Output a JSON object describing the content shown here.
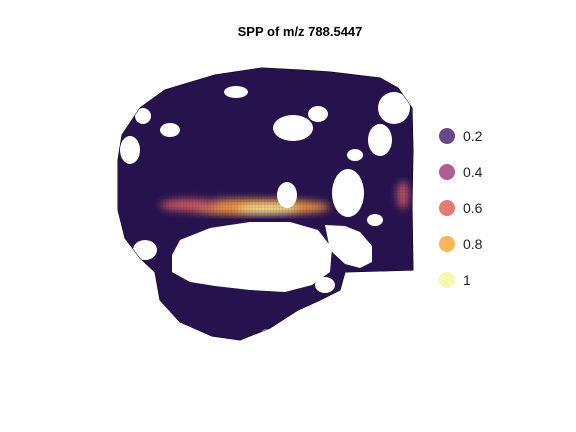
{
  "chart_data": {
    "type": "heatmap",
    "title": "SPP of m/z 788.5447",
    "xlabel": "",
    "ylabel": "",
    "color_scale": "inferno",
    "value_range": [
      0,
      1
    ],
    "legend": {
      "placement": "right",
      "entries": [
        {
          "label": "0.2",
          "value": 0.2,
          "color": "#4a2a75"
        },
        {
          "label": "0.4",
          "value": 0.4,
          "color": "#a3427a"
        },
        {
          "label": "0.6",
          "value": 0.6,
          "color": "#e0625a"
        },
        {
          "label": "0.8",
          "value": 0.8,
          "color": "#f9a83a"
        },
        {
          "label": "1",
          "value": 1.0,
          "color": "#f6f5a0"
        }
      ]
    },
    "background_value": 0.12,
    "hotspots": [
      {
        "region": "central band",
        "value": 0.75
      },
      {
        "region": "central band core",
        "value": 0.98
      },
      {
        "region": "left band",
        "value": 0.55
      },
      {
        "region": "right edge",
        "value": 0.5
      }
    ]
  }
}
